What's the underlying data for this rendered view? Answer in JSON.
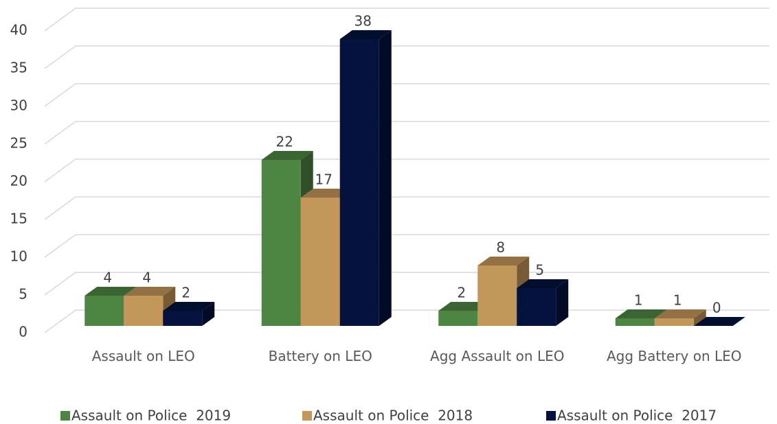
{
  "chart_data": {
    "type": "bar3d",
    "categories": [
      "Assault on LEO",
      "Battery on LEO",
      "Agg Assault on LEO",
      "Agg Battery on LEO"
    ],
    "series": [
      {
        "name": "Assault on Police  2019",
        "color": "#4e8542",
        "values": [
          4,
          22,
          2,
          1
        ]
      },
      {
        "name": "Assault on Police  2018",
        "color": "#c4975a",
        "values": [
          4,
          17,
          8,
          1
        ]
      },
      {
        "name": "Assault on Police  2017",
        "color": "#03133d",
        "values": [
          2,
          38,
          5,
          0
        ]
      }
    ],
    "ylim": [
      0,
      40
    ],
    "yticks": [
      0,
      5,
      10,
      15,
      20,
      25,
      30,
      35,
      40
    ],
    "grid": true,
    "legend": "bottom"
  }
}
